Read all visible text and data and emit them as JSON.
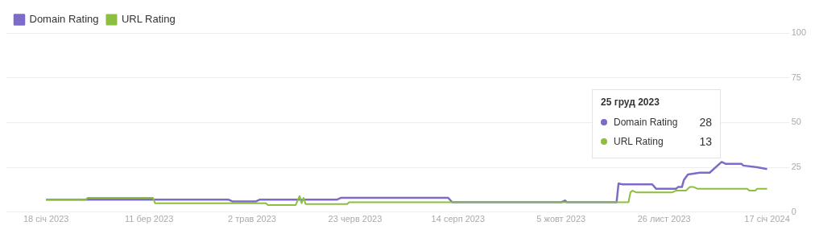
{
  "chart_data": {
    "type": "line",
    "x": [
      "2023-01-18",
      "2023-03-14",
      "2023-04-20",
      "2023-04-22",
      "2023-05-04",
      "2023-05-06",
      "2023-06-14",
      "2023-06-16",
      "2023-08-09",
      "2023-08-11",
      "2023-10-05",
      "2023-10-07",
      "2023-10-08",
      "2023-11-02",
      "2023-11-03",
      "2023-11-05",
      "2023-11-20",
      "2023-11-22",
      "2023-12-02",
      "2023-12-03",
      "2023-12-05",
      "2023-12-06",
      "2023-12-08",
      "2023-12-14",
      "2023-12-19",
      "2023-12-25",
      "2023-12-27",
      "2024-01-04",
      "2024-01-05",
      "2024-01-12",
      "2024-01-17"
    ],
    "series": [
      {
        "name": "Domain Rating",
        "color": "#7e6bc9",
        "values": [
          7,
          7,
          7,
          6,
          6,
          7,
          7,
          8,
          8,
          5.5,
          5.5,
          6.5,
          5.5,
          5.5,
          16,
          15.5,
          15.5,
          13,
          13,
          14,
          14,
          18,
          21,
          22,
          22,
          28,
          27,
          27,
          26,
          25,
          24
        ]
      },
      {
        "name": "URL Rating",
        "color": "#8cbf3f",
        "x": [
          "2023-01-18",
          "2023-02-07",
          "2023-02-08",
          "2023-03-13",
          "2023-03-14",
          "2023-05-09",
          "2023-05-10",
          "2023-05-24",
          "2023-05-26",
          "2023-05-27",
          "2023-05-28",
          "2023-05-29",
          "2023-06-19",
          "2023-06-20",
          "2023-11-08",
          "2023-11-09",
          "2023-11-10",
          "2023-11-12",
          "2023-11-30",
          "2023-12-02",
          "2023-12-07",
          "2023-12-09",
          "2023-12-11",
          "2023-12-13",
          "2024-01-07",
          "2024-01-08",
          "2024-01-11",
          "2024-01-12",
          "2024-01-17"
        ],
        "values": [
          7,
          7,
          8,
          8,
          5,
          5,
          4,
          4,
          9,
          5,
          8,
          4.5,
          4.5,
          5.5,
          5.5,
          11,
          12,
          11,
          11,
          12,
          12,
          14,
          14,
          13,
          13,
          12,
          12,
          13,
          13
        ]
      }
    ],
    "xlim": [
      "2022-12-29",
      "2024-01-28"
    ],
    "xticks": [
      {
        "value": "2023-01-18",
        "label": "18 січ 2023"
      },
      {
        "value": "2023-03-11",
        "label": "11 бер 2023"
      },
      {
        "value": "2023-05-02",
        "label": "2 трав 2023"
      },
      {
        "value": "2023-06-23",
        "label": "23 черв 2023"
      },
      {
        "value": "2023-08-14",
        "label": "14 серп 2023"
      },
      {
        "value": "2023-10-05",
        "label": "5 жовт 2023"
      },
      {
        "value": "2023-11-26",
        "label": "26 лист 2023"
      },
      {
        "value": "2024-01-17",
        "label": "17 січ 2024"
      }
    ],
    "ylim": [
      0,
      100
    ],
    "yticks": [
      0,
      25,
      50,
      75,
      100
    ],
    "grid": "y",
    "legend": "top left",
    "line_style": "solid",
    "marker": "none",
    "annotations": [
      "25 груд 2023",
      "Domain Rating 28",
      "URL Rating 13"
    ]
  }
}
